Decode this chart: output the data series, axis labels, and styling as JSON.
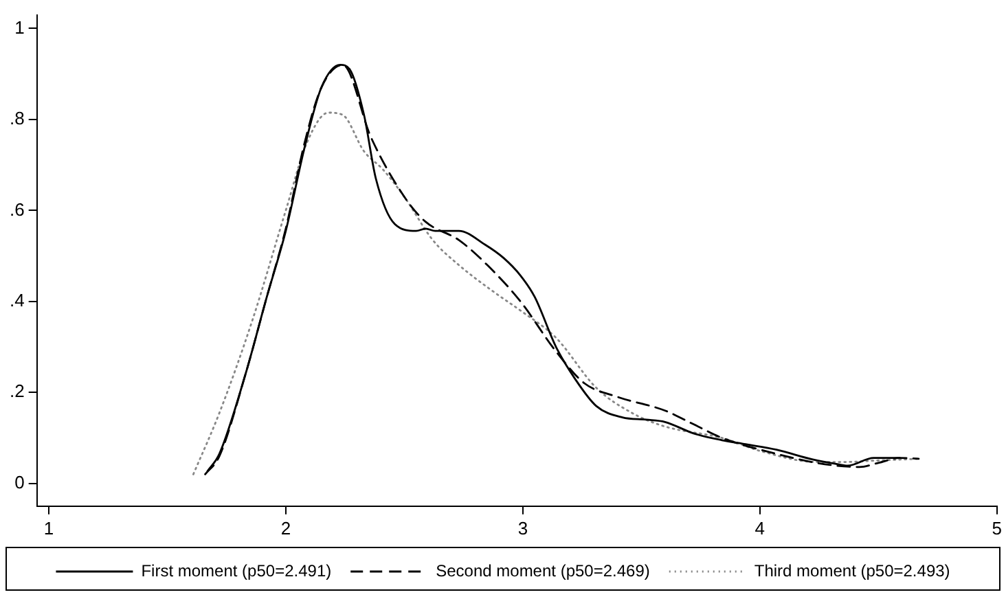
{
  "chart_data": {
    "type": "line",
    "legend": "bottom",
    "grid": false,
    "marker": "none",
    "xlim": [
      0.95,
      5
    ],
    "xticks": [
      1,
      2,
      3,
      4,
      5
    ],
    "ylim": [
      -0.05,
      1.03
    ],
    "yticks": [
      0,
      {
        "value": 0.2,
        "label": ".2"
      },
      {
        "value": 0.4,
        "label": ".4"
      },
      {
        "value": 0.6,
        "label": ".6"
      },
      {
        "value": 0.8,
        "label": ".8"
      },
      1
    ],
    "series": [
      {
        "name": "First moment (p50=2.491)",
        "color": "#000000",
        "line_style": "solid",
        "x": [
          1.67,
          1.72,
          1.83,
          1.92,
          2.0,
          2.08,
          2.15,
          2.23,
          2.27,
          2.33,
          2.38,
          2.46,
          2.55,
          2.59,
          2.63,
          2.73,
          2.84,
          2.92,
          2.99,
          3.05,
          3.14,
          3.22,
          3.31,
          3.42,
          3.52,
          3.6,
          3.72,
          3.84,
          3.94,
          4.07,
          4.22,
          4.33,
          4.37,
          4.48,
          4.59
        ],
        "values": [
          0.027,
          0.065,
          0.24,
          0.41,
          0.555,
          0.74,
          0.87,
          0.92,
          0.91,
          0.81,
          0.67,
          0.57,
          0.555,
          0.56,
          0.555,
          0.555,
          0.525,
          0.495,
          0.457,
          0.41,
          0.3,
          0.23,
          0.17,
          0.145,
          0.14,
          0.135,
          0.11,
          0.095,
          0.086,
          0.074,
          0.053,
          0.042,
          0.039,
          0.056,
          0.056
        ]
      },
      {
        "name": "Second moment (p50=2.469)",
        "color": "#000000",
        "line_style": "dashed",
        "x": [
          1.66,
          1.72,
          1.83,
          1.92,
          2.0,
          2.08,
          2.15,
          2.24,
          2.36,
          2.5,
          2.59,
          2.73,
          2.85,
          2.99,
          3.14,
          3.26,
          3.4,
          3.6,
          3.72,
          3.84,
          4.07,
          4.24,
          4.42,
          4.5,
          4.59,
          4.67
        ],
        "values": [
          0.02,
          0.06,
          0.24,
          0.41,
          0.56,
          0.75,
          0.87,
          0.92,
          0.76,
          0.63,
          0.575,
          0.535,
          0.48,
          0.4,
          0.29,
          0.22,
          0.19,
          0.16,
          0.13,
          0.1,
          0.065,
          0.045,
          0.036,
          0.045,
          0.056,
          0.054
        ]
      },
      {
        "name": "Third moment (p50=2.493)",
        "color": "#888888",
        "line_style": "dotted",
        "x": [
          1.61,
          1.72,
          1.86,
          2.0,
          2.09,
          2.18,
          2.24,
          2.33,
          2.41,
          2.5,
          2.62,
          2.73,
          2.88,
          2.99,
          3.14,
          3.31,
          3.46,
          3.6,
          3.84,
          4.01,
          4.24,
          4.36,
          4.48,
          4.67
        ],
        "values": [
          0.02,
          0.155,
          0.36,
          0.6,
          0.75,
          0.815,
          0.81,
          0.73,
          0.69,
          0.63,
          0.535,
          0.48,
          0.42,
          0.38,
          0.32,
          0.21,
          0.155,
          0.125,
          0.1,
          0.07,
          0.047,
          0.047,
          0.05,
          0.054
        ]
      }
    ]
  }
}
